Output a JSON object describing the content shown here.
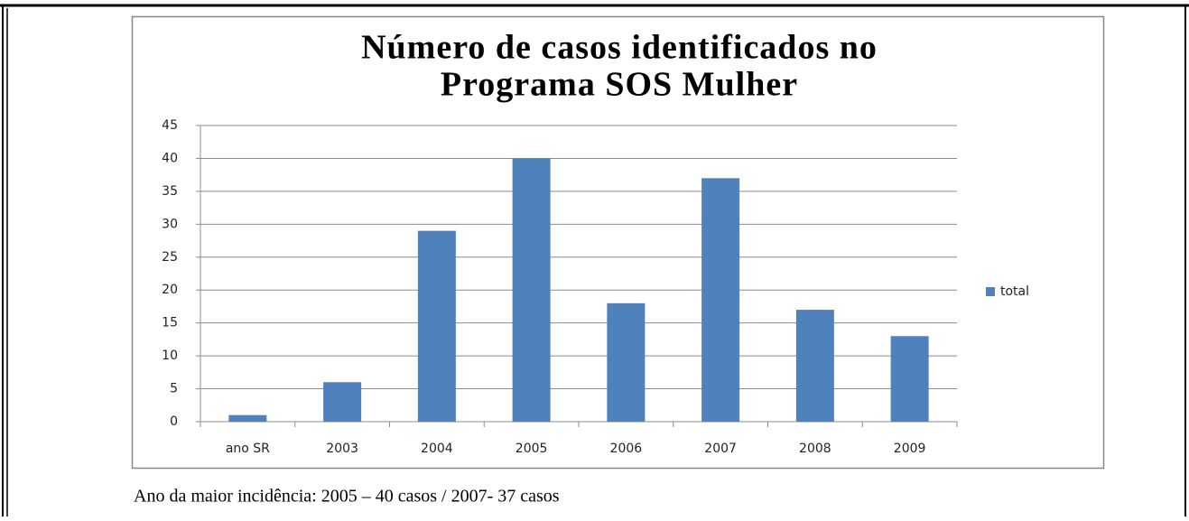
{
  "chart_data": {
    "type": "bar",
    "title": [
      "Número de casos identificados no",
      "Programa SOS Mulher"
    ],
    "categories": [
      "ano SR",
      "2003",
      "2004",
      "2005",
      "2006",
      "2007",
      "2008",
      "2009"
    ],
    "series": [
      {
        "name": "total",
        "color": "#4f81bd",
        "values": [
          1,
          6,
          29,
          40,
          18,
          37,
          17,
          13
        ]
      }
    ],
    "ylim": [
      0,
      45
    ],
    "yticks": [
      0,
      5,
      10,
      15,
      20,
      25,
      30,
      35,
      40,
      45
    ],
    "grid": true,
    "legend": "right"
  },
  "caption": "Ano da maior incidência: 2005 – 40 casos / 2007- 37 casos"
}
